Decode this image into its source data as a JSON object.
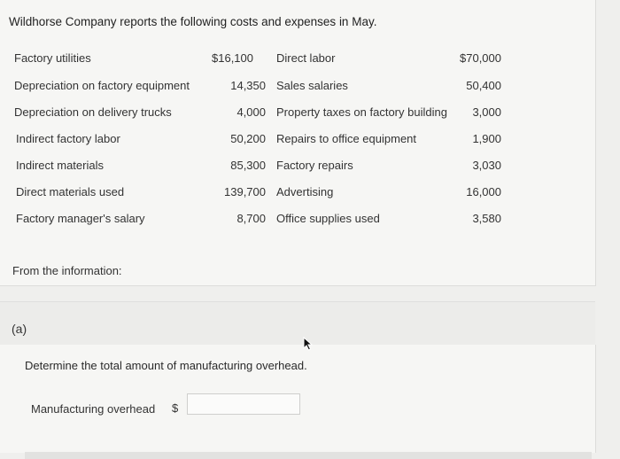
{
  "intro_text": "Wildhorse Company reports the following costs and expenses in May.",
  "left_items": [
    {
      "label": "Factory utilities",
      "value": "$16,100"
    },
    {
      "label": "Depreciation on factory equipment",
      "value": "14,350"
    },
    {
      "label": "Depreciation on delivery trucks",
      "value": "4,000"
    },
    {
      "label": "Indirect factory labor",
      "value": "50,200"
    },
    {
      "label": "Indirect materials",
      "value": "85,300"
    },
    {
      "label": "Direct materials used",
      "value": "139,700"
    },
    {
      "label": "Factory manager's salary",
      "value": "8,700"
    }
  ],
  "right_items": [
    {
      "label": "Direct labor",
      "value": "$70,000"
    },
    {
      "label": "Sales salaries",
      "value": "50,400"
    },
    {
      "label": "Property taxes on factory building",
      "value": "3,000"
    },
    {
      "label": "Repairs to office equipment",
      "value": "1,900"
    },
    {
      "label": "Factory repairs",
      "value": "3,030"
    },
    {
      "label": "Advertising",
      "value": "16,000"
    },
    {
      "label": "Office supplies used",
      "value": "3,580"
    }
  ],
  "from_info": "From the information:",
  "part_label": "(a)",
  "question": "Determine the total amount of manufacturing overhead.",
  "answer": {
    "label": "Manufacturing overhead",
    "currency": "$",
    "value": ""
  }
}
